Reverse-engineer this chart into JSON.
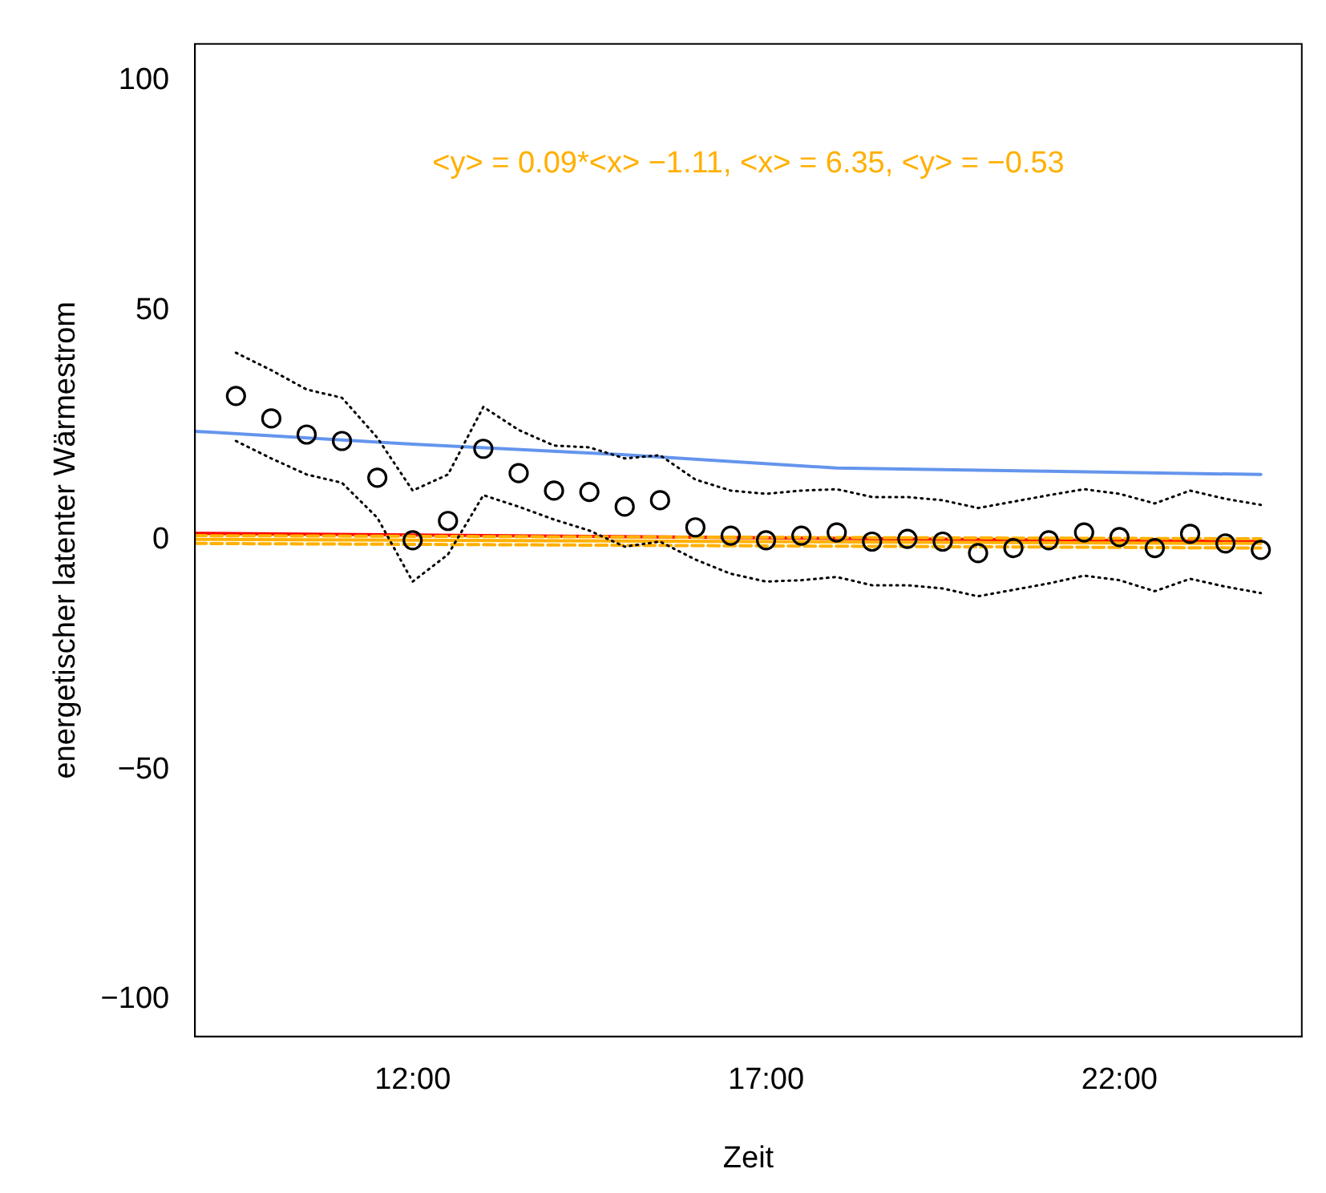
{
  "chart_data": {
    "type": "scatter",
    "xlabel": "Zeit",
    "ylabel": "energetischer latenter Wärmestrom",
    "annotations": [
      "<y> = 0.09*<x> −1.11, <x> = 6.35, <y> = −0.53"
    ],
    "xlim": [
      8.92,
      24.58
    ],
    "xticks": [
      {
        "value": 12,
        "label": "12:00"
      },
      {
        "value": 17,
        "label": "17:00"
      },
      {
        "value": 22,
        "label": "22:00"
      }
    ],
    "ylim": [
      -108,
      108
    ],
    "yticks": [
      {
        "value": -100,
        "label": "−100"
      },
      {
        "value": -50,
        "label": "−50"
      },
      0,
      50,
      100
    ],
    "grid": false,
    "legend": false,
    "x": [
      9.5,
      10,
      10.5,
      11,
      11.5,
      12,
      12.5,
      13,
      13.5,
      14,
      14.5,
      15,
      15.5,
      16,
      16.5,
      17,
      17.5,
      18,
      18.5,
      19,
      19.5,
      20,
      20.5,
      21,
      21.5,
      22,
      22.5,
      23,
      23.5,
      24
    ],
    "series": [
      {
        "type": "line",
        "color": "#000000",
        "line_style": "dotted",
        "marker": "none",
        "values": [
          40.8,
          37,
          32.8,
          31,
          22.3,
          10.8,
          14.3,
          29,
          24,
          20.6,
          20.2,
          17.8,
          18.5,
          13.2,
          10.8,
          10.1,
          10.8,
          11.1,
          9.4,
          9.4,
          8.7,
          7,
          8.4,
          9.8,
          11.1,
          10.1,
          8,
          10.8,
          9,
          7.7
        ]
      },
      {
        "type": "line",
        "color": "#000000",
        "line_style": "dotted",
        "marker": "none",
        "values": [
          21.6,
          17.8,
          14.3,
          12.5,
          4.9,
          -9,
          -3.1,
          9.8,
          7.3,
          4.5,
          2.1,
          -1.4,
          -0.3,
          -4.2,
          -7.3,
          -9,
          -8.7,
          -8,
          -9.8,
          -9.8,
          -10.5,
          -12.2,
          -10.8,
          -9.4,
          -7.7,
          -8.7,
          -11.1,
          -8.4,
          -10.1,
          -11.5
        ]
      },
      {
        "color": "#000000",
        "marker": "circle",
        "values": [
          31.4,
          26.5,
          23,
          21.6,
          13.6,
          0,
          4.2,
          19.9,
          14.6,
          10.8,
          10.5,
          7.3,
          8.7,
          2.8,
          1,
          0,
          1,
          1.7,
          -0.3,
          0.3,
          -0.3,
          -2.8,
          -1.7,
          0,
          1.7,
          0.7,
          -1.7,
          1.4,
          -0.7,
          -2.1
        ]
      },
      {
        "type": "line",
        "color": "#6495ed",
        "line_style": "solid",
        "marker": "none",
        "x": [
          8.92,
          12,
          15,
          18,
          21,
          24
        ],
        "values": [
          23.7,
          20.9,
          18.6,
          15.7,
          15,
          14.3
        ]
      },
      {
        "type": "line",
        "color": "#ffb000",
        "line_style": "dashed",
        "marker": "none",
        "x": [
          8.92,
          24
        ],
        "values": [
          1,
          0.3
        ]
      },
      {
        "type": "line",
        "color": "#ffb000",
        "line_style": "dashed",
        "marker": "none",
        "x": [
          8.92,
          24
        ],
        "values": [
          -0.7,
          -1.7
        ]
      },
      {
        "type": "line",
        "color": "#ffb000",
        "line_style": "solid",
        "marker": "none",
        "x": [
          8.92,
          24
        ],
        "values": [
          0.2,
          -0.7
        ]
      },
      {
        "type": "line",
        "color": "#ff0000",
        "line_style": "solid",
        "marker": "none",
        "x": [
          8.92,
          24
        ],
        "values": [
          1.5,
          -0.3
        ]
      }
    ]
  }
}
